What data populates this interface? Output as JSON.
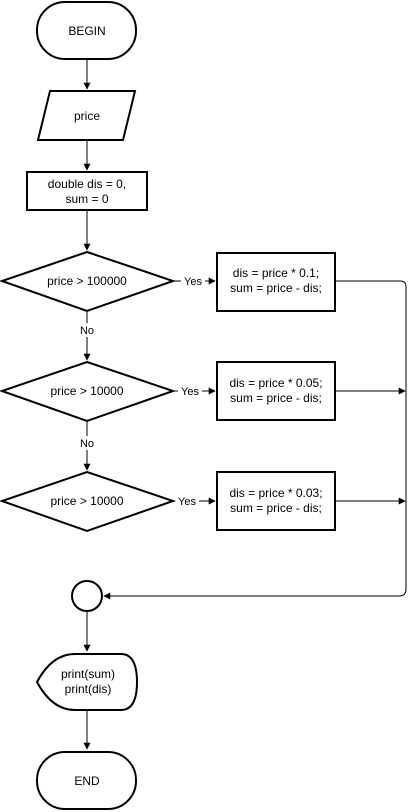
{
  "nodes": {
    "begin": {
      "label": "BEGIN"
    },
    "input_price": {
      "label": "price"
    },
    "init": {
      "line1": "double dis = 0,",
      "line2": "sum = 0"
    },
    "cond1": {
      "label": "price > 100000"
    },
    "action1": {
      "line1": "dis = price * 0.1;",
      "line2": "sum = price - dis;"
    },
    "cond2": {
      "label": "price > 10000"
    },
    "action2": {
      "line1": "dis = price * 0.05;",
      "line2": "sum = price - dis;"
    },
    "cond3": {
      "label": "price > 10000"
    },
    "action3": {
      "line1": "dis = price * 0.03;",
      "line2": "sum = price - dis;"
    },
    "output": {
      "line1": "print(sum)",
      "line2": "print(dis)"
    },
    "end": {
      "label": "END"
    }
  },
  "edges": {
    "yes": "Yes",
    "no": "No"
  }
}
